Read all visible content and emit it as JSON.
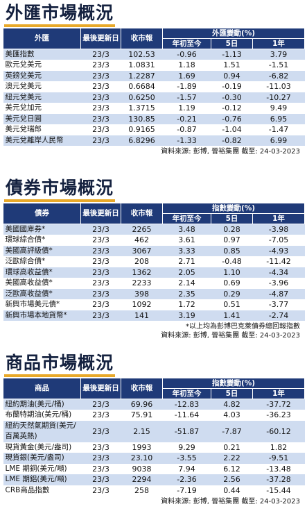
{
  "fx": {
    "title": "外匯市場概況",
    "headers": {
      "name": "外匯",
      "date": "最後更新日",
      "price": "收市報",
      "change_group": "外匯變動(%)",
      "ytd": "年初至今",
      "d5": "5日",
      "y1": "1年"
    },
    "rows": [
      {
        "name": "美匯指數",
        "date": "23/3",
        "price": "102.53",
        "ytd": "-0.96",
        "d5": "-1.13",
        "y1": "3.79"
      },
      {
        "name": "歐元兌美元",
        "date": "23/3",
        "price": "1.0831",
        "ytd": "1.18",
        "d5": "1.51",
        "y1": "-1.51"
      },
      {
        "name": "英鎊兌美元",
        "date": "23/3",
        "price": "1.2287",
        "ytd": "1.69",
        "d5": "0.94",
        "y1": "-6.82"
      },
      {
        "name": "澳元兌美元",
        "date": "23/3",
        "price": "0.6684",
        "ytd": "-1.89",
        "d5": "-0.19",
        "y1": "-11.03"
      },
      {
        "name": "紐元兌美元",
        "date": "23/3",
        "price": "0.6250",
        "ytd": "-1.57",
        "d5": "-0.30",
        "y1": "-10.27"
      },
      {
        "name": "美元兌加元",
        "date": "23/3",
        "price": "1.3715",
        "ytd": "1.19",
        "d5": "-0.12",
        "y1": "9.49"
      },
      {
        "name": "美元兌日圓",
        "date": "23/3",
        "price": "130.85",
        "ytd": "-0.21",
        "d5": "-0.76",
        "y1": "6.95"
      },
      {
        "name": "美元兌瑞郎",
        "date": "23/3",
        "price": "0.9165",
        "ytd": "-0.87",
        "d5": "-1.04",
        "y1": "-1.47"
      },
      {
        "name": "美元兌離岸人民幣",
        "date": "23/3",
        "price": "6.8296",
        "ytd": "-1.33",
        "d5": "-0.82",
        "y1": "6.99"
      }
    ],
    "source": "資料來源: 彭博, 晉裕集團 截至: 24-03-2023"
  },
  "bond": {
    "title": "債券市場概況",
    "headers": {
      "name": "債券",
      "date": "最後更新日",
      "price": "收市報",
      "change_group": "指數變動(%)",
      "ytd": "年初至今",
      "d5": "5日",
      "y1": "1年"
    },
    "rows": [
      {
        "name": "美國國庫券*",
        "date": "23/3",
        "price": "2265",
        "ytd": "3.48",
        "d5": "0.28",
        "y1": "-3.98"
      },
      {
        "name": "環球綜合債*",
        "date": "23/3",
        "price": "462",
        "ytd": "3.61",
        "d5": "0.97",
        "y1": "-7.05"
      },
      {
        "name": "美國高評級債*",
        "date": "23/3",
        "price": "3067",
        "ytd": "3.33",
        "d5": "0.85",
        "y1": "-4.93"
      },
      {
        "name": "泛歐綜合債*",
        "date": "23/3",
        "price": "208",
        "ytd": "2.71",
        "d5": "-0.48",
        "y1": "-11.42"
      },
      {
        "name": "環球高收益債*",
        "date": "23/3",
        "price": "1362",
        "ytd": "2.05",
        "d5": "1.10",
        "y1": "-4.34"
      },
      {
        "name": "美國高收益債*",
        "date": "23/3",
        "price": "2233",
        "ytd": "2.14",
        "d5": "0.69",
        "y1": "-3.96"
      },
      {
        "name": "泛歐高收益債*",
        "date": "23/3",
        "price": "398",
        "ytd": "2.35",
        "d5": "0.29",
        "y1": "-4.87"
      },
      {
        "name": "新興市場美元債*",
        "date": "23/3",
        "price": "1092",
        "ytd": "1.72",
        "d5": "0.51",
        "y1": "-3.77"
      },
      {
        "name": "新興市場本地貨幣*",
        "date": "23/3",
        "price": "141",
        "ytd": "3.19",
        "d5": "1.41",
        "y1": "-2.74"
      }
    ],
    "note": "*以上均為彭博巴克萊債券總回報指數",
    "source": "資料來源: 彭博, 晉裕集團 截至: 24-03-2023"
  },
  "commodity": {
    "title": "商品市場概況",
    "headers": {
      "name": "商品",
      "date": "最後更新日",
      "price": "收市報",
      "change_group": "指數變動(%)",
      "ytd": "年初至今",
      "d5": "5日",
      "y1": "1年"
    },
    "rows": [
      {
        "name": "紐約期油(美元/桶)",
        "date": "23/3",
        "price": "69.96",
        "ytd": "-12.83",
        "d5": "4.82",
        "y1": "-37.72"
      },
      {
        "name": "布蘭特期油(美元/桶)",
        "date": "23/3",
        "price": "75.91",
        "ytd": "-11.64",
        "d5": "4.03",
        "y1": "-36.23"
      },
      {
        "name": "紐約天然氣期貨(美元/百萬英熱)",
        "date": "23/3",
        "price": "2.15",
        "ytd": "-51.87",
        "d5": "-7.87",
        "y1": "-60.12",
        "wrap": true
      },
      {
        "name": "現貨黃金(美元/盎司)",
        "date": "23/3",
        "price": "1993",
        "ytd": "9.29",
        "d5": "0.21",
        "y1": "1.82"
      },
      {
        "name": "現貨銀(美元/盎司)",
        "date": "23/3",
        "price": "23.10",
        "ytd": "-3.55",
        "d5": "2.22",
        "y1": "-9.51"
      },
      {
        "name": "LME 期銅(美元/噸)",
        "date": "23/3",
        "price": "9038",
        "ytd": "7.94",
        "d5": "6.12",
        "y1": "-13.48"
      },
      {
        "name": "LME 期鋁(美元/噸)",
        "date": "23/3",
        "price": "2294",
        "ytd": "-2.36",
        "d5": "2.56",
        "y1": "-37.28"
      },
      {
        "name": "CRB商品指數",
        "date": "23/3",
        "price": "258",
        "ytd": "-7.19",
        "d5": "0.44",
        "y1": "-15.44"
      }
    ],
    "source": "資料來源: 彭博, 晉裕集團 截至: 24-03-2023"
  }
}
